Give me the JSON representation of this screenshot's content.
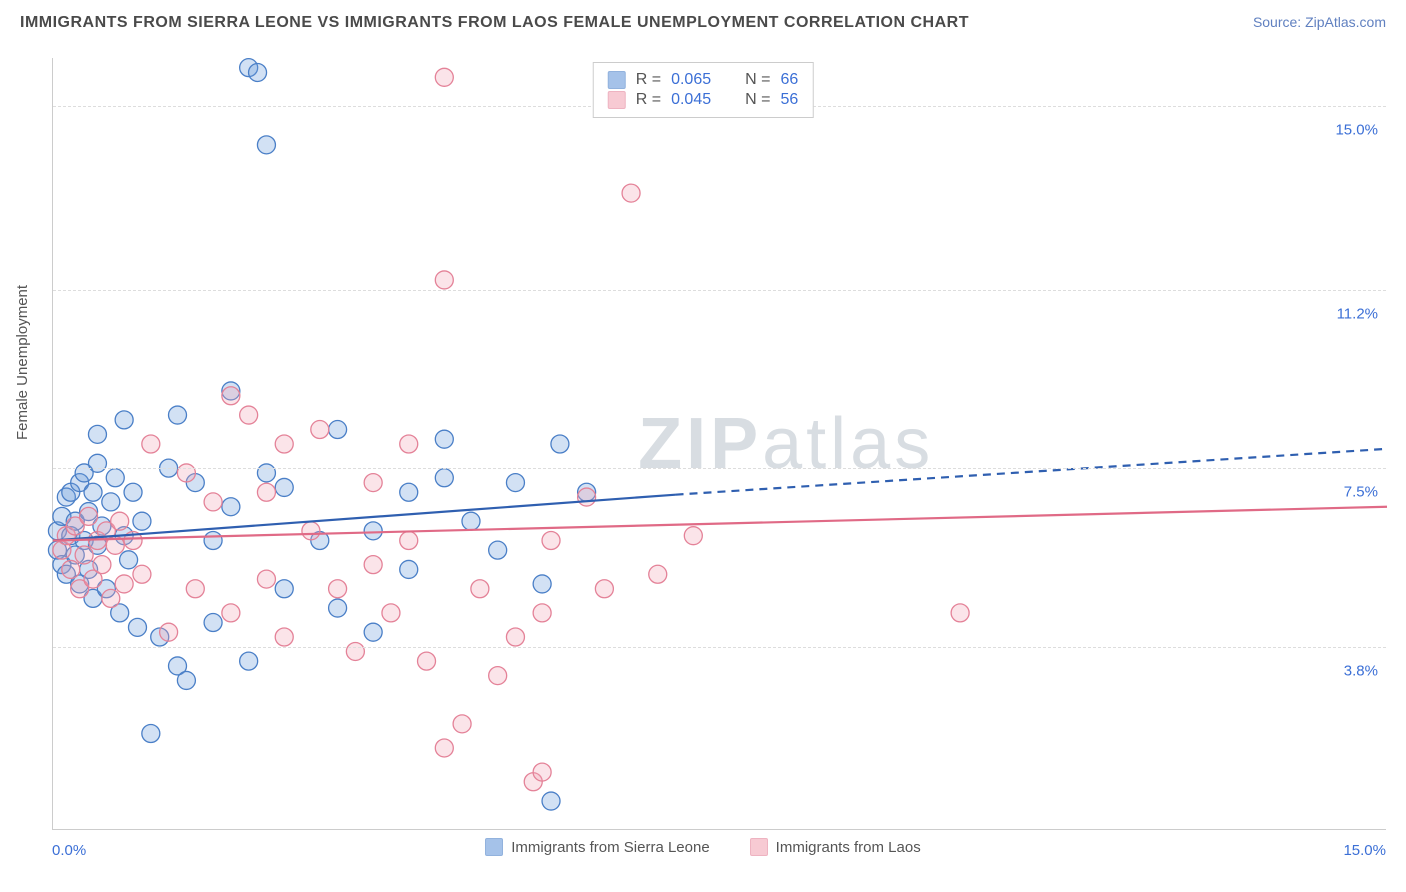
{
  "header": {
    "title": "IMMIGRANTS FROM SIERRA LEONE VS IMMIGRANTS FROM LAOS FEMALE UNEMPLOYMENT CORRELATION CHART",
    "source_label": "Source: ",
    "source_name": "ZipAtlas.com"
  },
  "chart": {
    "type": "scatter",
    "y_axis_title": "Female Unemployment",
    "x_min_label": "0.0%",
    "x_max_label": "15.0%",
    "xlim": [
      0,
      15
    ],
    "ylim": [
      0,
      16
    ],
    "y_ticks": [
      {
        "value": 3.8,
        "label": "3.8%"
      },
      {
        "value": 7.5,
        "label": "7.5%"
      },
      {
        "value": 11.2,
        "label": "11.2%"
      },
      {
        "value": 15.0,
        "label": "15.0%"
      }
    ],
    "grid_color": "#dddddd",
    "background_color": "#ffffff",
    "axis_line_color": "#cccccc",
    "tick_label_color": "#3b6fd6",
    "tick_fontsize": 15,
    "marker_radius": 9,
    "marker_fill_opacity": 0.3,
    "marker_stroke_width": 1.3,
    "trend_line_width": 2.2,
    "series": [
      {
        "id": "sierra_leone",
        "label": "Immigrants from Sierra Leone",
        "color": "#6a9bdc",
        "stroke": "#4a7fc7",
        "trend_color": "#2f5fb0",
        "R": 0.065,
        "N": 66,
        "trend": {
          "x1": 0.0,
          "y1": 6.0,
          "x2_solid": 7.0,
          "y2_solid": 6.95,
          "x2": 15.0,
          "y2": 7.9
        },
        "points": [
          [
            0.05,
            6.2
          ],
          [
            0.05,
            5.8
          ],
          [
            0.1,
            6.5
          ],
          [
            0.1,
            5.5
          ],
          [
            0.15,
            6.9
          ],
          [
            0.15,
            5.3
          ],
          [
            0.2,
            6.1
          ],
          [
            0.2,
            7.0
          ],
          [
            0.25,
            5.7
          ],
          [
            0.25,
            6.4
          ],
          [
            0.3,
            7.2
          ],
          [
            0.3,
            5.1
          ],
          [
            0.35,
            6.0
          ],
          [
            0.35,
            7.4
          ],
          [
            0.4,
            6.6
          ],
          [
            0.4,
            5.4
          ],
          [
            0.45,
            7.0
          ],
          [
            0.45,
            4.8
          ],
          [
            0.5,
            7.6
          ],
          [
            0.5,
            5.9
          ],
          [
            0.55,
            6.3
          ],
          [
            0.6,
            5.0
          ],
          [
            0.65,
            6.8
          ],
          [
            0.7,
            7.3
          ],
          [
            0.75,
            4.5
          ],
          [
            0.8,
            6.1
          ],
          [
            0.85,
            5.6
          ],
          [
            0.9,
            7.0
          ],
          [
            0.95,
            4.2
          ],
          [
            1.0,
            6.4
          ],
          [
            0.5,
            8.2
          ],
          [
            0.8,
            8.5
          ],
          [
            1.2,
            4.0
          ],
          [
            1.4,
            3.4
          ],
          [
            1.5,
            3.1
          ],
          [
            1.3,
            7.5
          ],
          [
            1.4,
            8.6
          ],
          [
            1.6,
            7.2
          ],
          [
            1.8,
            6.0
          ],
          [
            1.8,
            4.3
          ],
          [
            2.0,
            6.7
          ],
          [
            2.0,
            9.1
          ],
          [
            2.2,
            3.5
          ],
          [
            2.2,
            15.8
          ],
          [
            2.3,
            15.7
          ],
          [
            2.4,
            14.2
          ],
          [
            2.4,
            7.4
          ],
          [
            2.6,
            5.0
          ],
          [
            2.6,
            7.1
          ],
          [
            3.0,
            6.0
          ],
          [
            3.2,
            4.6
          ],
          [
            3.2,
            8.3
          ],
          [
            3.6,
            6.2
          ],
          [
            3.6,
            4.1
          ],
          [
            4.0,
            7.0
          ],
          [
            4.0,
            5.4
          ],
          [
            4.4,
            8.1
          ],
          [
            4.4,
            7.3
          ],
          [
            4.7,
            6.4
          ],
          [
            5.0,
            5.8
          ],
          [
            5.2,
            7.2
          ],
          [
            5.5,
            5.1
          ],
          [
            5.7,
            8.0
          ],
          [
            6.0,
            7.0
          ],
          [
            1.1,
            2.0
          ],
          [
            5.6,
            0.6
          ]
        ]
      },
      {
        "id": "laos",
        "label": "Immigrants from Laos",
        "color": "#f2a7b7",
        "stroke": "#e48298",
        "trend_color": "#e06a86",
        "R": 0.045,
        "N": 56,
        "trend": {
          "x1": 0.0,
          "y1": 6.0,
          "x2_solid": 15.0,
          "y2_solid": 6.7,
          "x2": 15.0,
          "y2": 6.7
        },
        "points": [
          [
            0.1,
            5.8
          ],
          [
            0.15,
            6.1
          ],
          [
            0.2,
            5.4
          ],
          [
            0.25,
            6.3
          ],
          [
            0.3,
            5.0
          ],
          [
            0.35,
            5.7
          ],
          [
            0.4,
            6.5
          ],
          [
            0.45,
            5.2
          ],
          [
            0.5,
            6.0
          ],
          [
            0.55,
            5.5
          ],
          [
            0.6,
            6.2
          ],
          [
            0.65,
            4.8
          ],
          [
            0.7,
            5.9
          ],
          [
            0.75,
            6.4
          ],
          [
            0.8,
            5.1
          ],
          [
            0.9,
            6.0
          ],
          [
            1.0,
            5.3
          ],
          [
            1.1,
            8.0
          ],
          [
            1.3,
            4.1
          ],
          [
            1.5,
            7.4
          ],
          [
            1.6,
            5.0
          ],
          [
            1.8,
            6.8
          ],
          [
            2.0,
            9.0
          ],
          [
            2.0,
            4.5
          ],
          [
            2.2,
            8.6
          ],
          [
            2.4,
            7.0
          ],
          [
            2.4,
            5.2
          ],
          [
            2.6,
            8.0
          ],
          [
            2.6,
            4.0
          ],
          [
            2.9,
            6.2
          ],
          [
            3.0,
            8.3
          ],
          [
            3.2,
            5.0
          ],
          [
            3.4,
            3.7
          ],
          [
            3.6,
            7.2
          ],
          [
            3.6,
            5.5
          ],
          [
            3.8,
            4.5
          ],
          [
            4.0,
            6.0
          ],
          [
            4.0,
            8.0
          ],
          [
            4.2,
            3.5
          ],
          [
            4.4,
            15.6
          ],
          [
            4.4,
            11.4
          ],
          [
            4.4,
            1.7
          ],
          [
            4.6,
            2.2
          ],
          [
            4.8,
            5.0
          ],
          [
            5.0,
            3.2
          ],
          [
            5.2,
            4.0
          ],
          [
            5.4,
            1.0
          ],
          [
            5.5,
            1.2
          ],
          [
            5.5,
            4.5
          ],
          [
            5.6,
            6.0
          ],
          [
            6.0,
            6.9
          ],
          [
            6.2,
            5.0
          ],
          [
            6.5,
            13.2
          ],
          [
            6.8,
            5.3
          ],
          [
            7.2,
            6.1
          ],
          [
            10.2,
            4.5
          ]
        ]
      }
    ]
  },
  "top_legend": {
    "R_label": "R =",
    "N_label": "N ="
  },
  "bottom_legend": {},
  "watermark": {
    "text_bold": "ZIP",
    "text_light": "atlas"
  }
}
